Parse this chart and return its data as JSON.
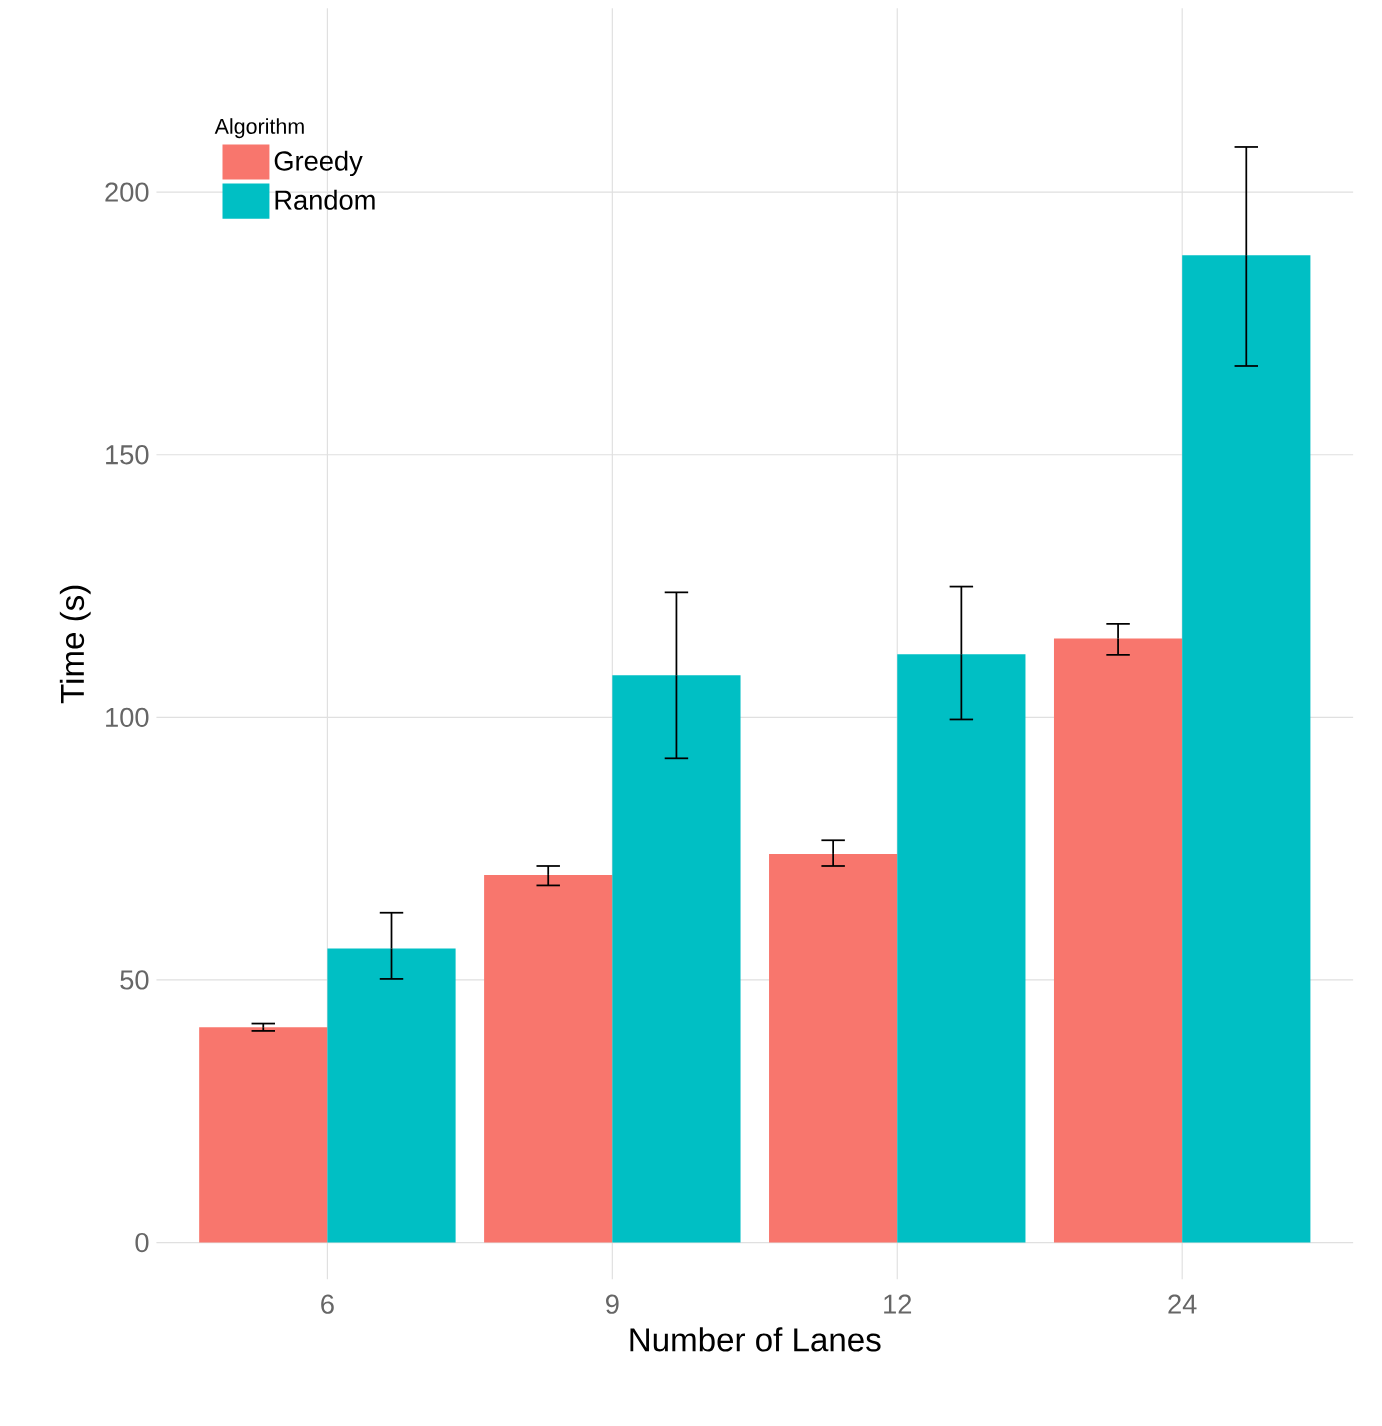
{
  "chart_data": {
    "type": "bar",
    "xlabel": "Number of Lanes",
    "ylabel": "Time (s)",
    "legend_title": "Algorithm",
    "categories": [
      "6",
      "9",
      "12",
      "24"
    ],
    "series": [
      {
        "name": "Greedy",
        "color": "#f8766d",
        "values": [
          41,
          70,
          74,
          115
        ],
        "errors": [
          [
            40.3,
            41.7
          ],
          [
            68.0,
            71.7
          ],
          [
            71.7,
            76.6
          ],
          [
            111.9,
            117.8
          ]
        ]
      },
      {
        "name": "Random",
        "color": "#00bfc4",
        "values": [
          56,
          108,
          112,
          188
        ],
        "errors": [
          [
            50.2,
            62.8
          ],
          [
            92.2,
            123.8
          ],
          [
            99.6,
            124.9
          ],
          [
            166.9,
            208.6
          ]
        ]
      }
    ],
    "ylim": [
      -7,
      235
    ],
    "yticks": [
      0,
      50,
      100,
      150,
      200
    ],
    "grid": true,
    "legend": "top left"
  }
}
